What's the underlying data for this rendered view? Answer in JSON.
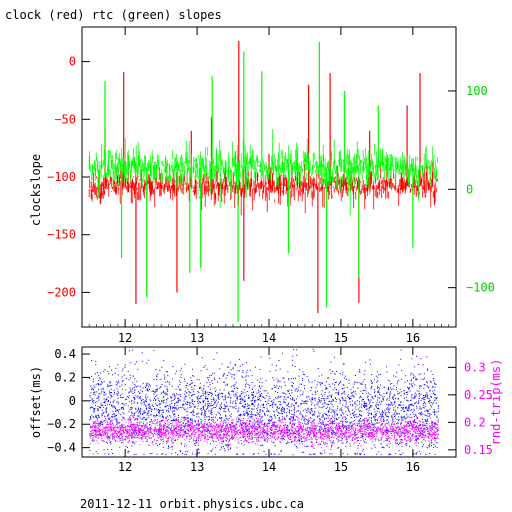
{
  "title": "clock (red) rtc (green) slopes",
  "footer": "2011-12-11 orbit.physics.ubc.ca",
  "colors": {
    "red": "#ff0000",
    "green": "#00ff00",
    "blue": "#0000ff",
    "magenta": "#ff00ff",
    "axis": "#000000"
  },
  "chart_data": [
    {
      "type": "line",
      "title": "clock (red) rtc (green) slopes",
      "ylabel": "clockslope",
      "xlabel": "",
      "xlim": [
        11.4,
        16.6
      ],
      "ylim": [
        -230,
        30
      ],
      "ylim_right": [
        -140,
        165
      ],
      "x_ticks": [
        12,
        13,
        14,
        15,
        16
      ],
      "y_ticks": [
        0,
        -50,
        -100,
        -150,
        -200
      ],
      "y_ticks_right": [
        100,
        0,
        -100
      ],
      "grid": false,
      "series": [
        {
          "name": "clock (red)",
          "axis": "left",
          "color": "red",
          "baseline": -108,
          "x_range": [
            11.5,
            16.35
          ],
          "spikes": [
            {
              "x": 11.72,
              "y": -58
            },
            {
              "x": 11.98,
              "y": -9
            },
            {
              "x": 12.15,
              "y": -210
            },
            {
              "x": 12.72,
              "y": -200
            },
            {
              "x": 12.92,
              "y": -60
            },
            {
              "x": 13.2,
              "y": -48
            },
            {
              "x": 13.58,
              "y": 18
            },
            {
              "x": 13.65,
              "y": -190
            },
            {
              "x": 14.0,
              "y": -80
            },
            {
              "x": 14.55,
              "y": -20
            },
            {
              "x": 14.68,
              "y": -218
            },
            {
              "x": 14.85,
              "y": -10
            },
            {
              "x": 15.25,
              "y": -209
            },
            {
              "x": 15.4,
              "y": -60
            },
            {
              "x": 15.92,
              "y": -38
            },
            {
              "x": 16.1,
              "y": -10
            }
          ]
        },
        {
          "name": "rtc (green)",
          "axis": "right",
          "color": "green",
          "baseline": 22,
          "x_range": [
            11.5,
            16.35
          ],
          "spikes": [
            {
              "x": 11.72,
              "y": 110
            },
            {
              "x": 11.95,
              "y": -70
            },
            {
              "x": 12.3,
              "y": -110
            },
            {
              "x": 12.9,
              "y": -85
            },
            {
              "x": 13.05,
              "y": -80
            },
            {
              "x": 13.21,
              "y": 115
            },
            {
              "x": 13.57,
              "y": -135
            },
            {
              "x": 13.65,
              "y": 140
            },
            {
              "x": 13.9,
              "y": 120
            },
            {
              "x": 14.27,
              "y": -65
            },
            {
              "x": 14.7,
              "y": 150
            },
            {
              "x": 14.8,
              "y": -120
            },
            {
              "x": 15.05,
              "y": 100
            },
            {
              "x": 15.25,
              "y": -90
            },
            {
              "x": 15.52,
              "y": 85
            },
            {
              "x": 16.0,
              "y": -60
            }
          ]
        }
      ]
    },
    {
      "type": "scatter",
      "ylabel": "offset(ms)",
      "ylabel_right": "rnd-trip(ms)",
      "xlim": [
        11.4,
        16.6
      ],
      "ylim": [
        -0.48,
        0.46
      ],
      "ylim_right": [
        0.137,
        0.337
      ],
      "x_ticks": [
        12,
        13,
        14,
        15,
        16
      ],
      "y_ticks": [
        0.4,
        0.2,
        0,
        -0.2,
        -0.4
      ],
      "y_ticks_right": [
        0.3,
        0.25,
        0.2,
        0.15
      ],
      "grid": false,
      "series": [
        {
          "name": "offset (blue)",
          "axis": "left",
          "color": "blue",
          "x_range": [
            11.5,
            16.35
          ],
          "center": -0.08,
          "spread": 0.35,
          "points": 5200
        },
        {
          "name": "rnd-trip (magenta)",
          "axis": "right",
          "color": "magenta",
          "x_range": [
            11.5,
            16.35
          ],
          "center": 0.184,
          "spread": 0.02,
          "points": 2800
        }
      ]
    }
  ]
}
